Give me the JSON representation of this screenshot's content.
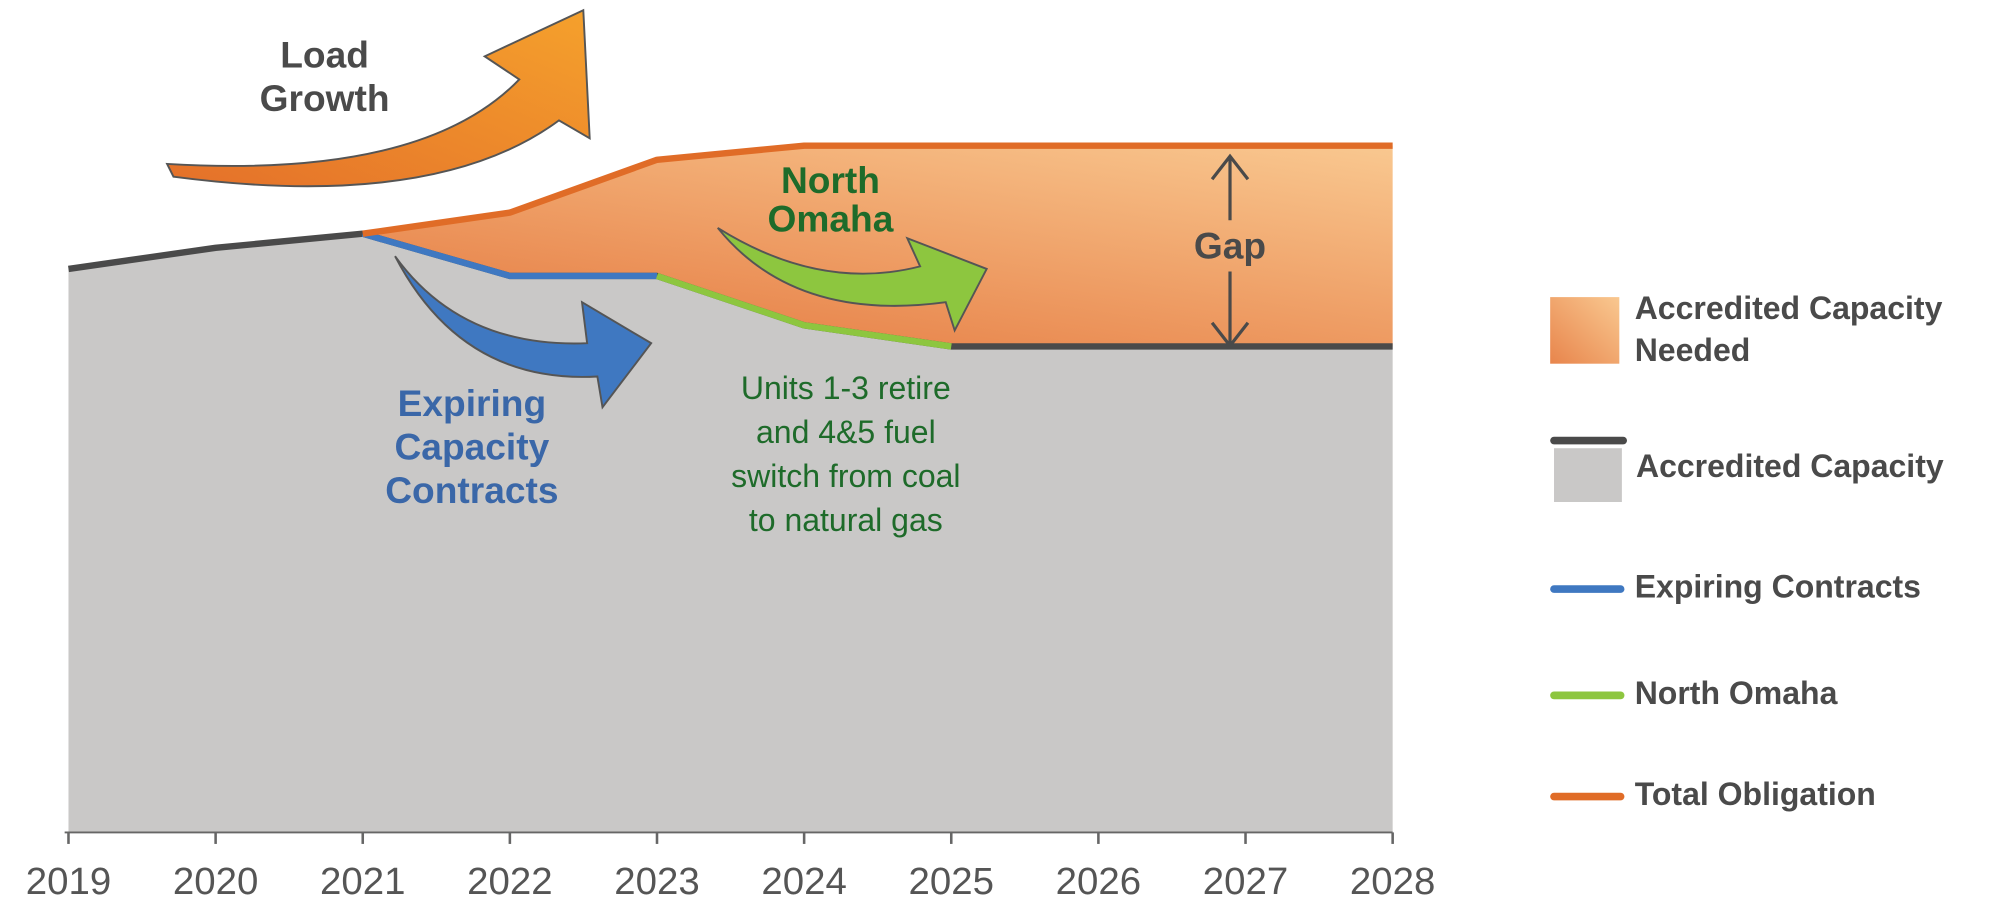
{
  "chart_data": {
    "type": "area",
    "categories": [
      "2019",
      "2020",
      "2021",
      "2022",
      "2023",
      "2024",
      "2025",
      "2026",
      "2027",
      "2028"
    ],
    "ylim": [
      0,
      100
    ],
    "series": [
      {
        "name": "Accredited Capacity Needed",
        "kind": "area",
        "color": "#f0913a",
        "gradient": [
          "#e8854c",
          "#f9c890"
        ],
        "values": [
          null,
          null,
          0,
          9,
          16.5,
          25.5,
          28.5,
          28.5,
          28.5,
          28.5
        ]
      },
      {
        "name": "Accredited Capacity",
        "kind": "line",
        "color": "#4a4a4a",
        "fill": "#c9c8c7",
        "values": [
          80,
          83,
          85,
          79,
          79,
          72,
          69,
          69,
          69,
          69
        ]
      },
      {
        "name": "Expiring Contracts",
        "kind": "line",
        "color": "#3f78c1",
        "values": [
          null,
          null,
          85,
          79,
          79,
          null,
          null,
          null,
          null,
          null
        ]
      },
      {
        "name": "North Omaha",
        "kind": "line",
        "color": "#8dc63f",
        "values": [
          null,
          null,
          null,
          null,
          79,
          72,
          69,
          null,
          null,
          null
        ]
      },
      {
        "name": "Total Obligation",
        "kind": "line",
        "color": "#e06c27",
        "values": [
          null,
          null,
          85,
          88,
          95.5,
          97.5,
          97.5,
          97.5,
          97.5,
          97.5
        ]
      }
    ],
    "annotations": [
      {
        "text": [
          "Load",
          "Growth"
        ],
        "color": "#4a4a4a",
        "bold": true
      },
      {
        "text": [
          "North",
          "Omaha"
        ],
        "color": "#1e6b2a",
        "bold": true
      },
      {
        "text": [
          "Expiring",
          "Capacity",
          "Contracts"
        ],
        "color": "#3a67a8",
        "bold": true
      },
      {
        "text": [
          "Units 1-3 retire",
          "and 4&5 fuel",
          "switch from coal",
          "to natural gas"
        ],
        "color": "#1e6b2a",
        "bold": false
      },
      {
        "text": [
          "Gap"
        ],
        "color": "#4a4a4a",
        "bold": true
      }
    ]
  }
}
